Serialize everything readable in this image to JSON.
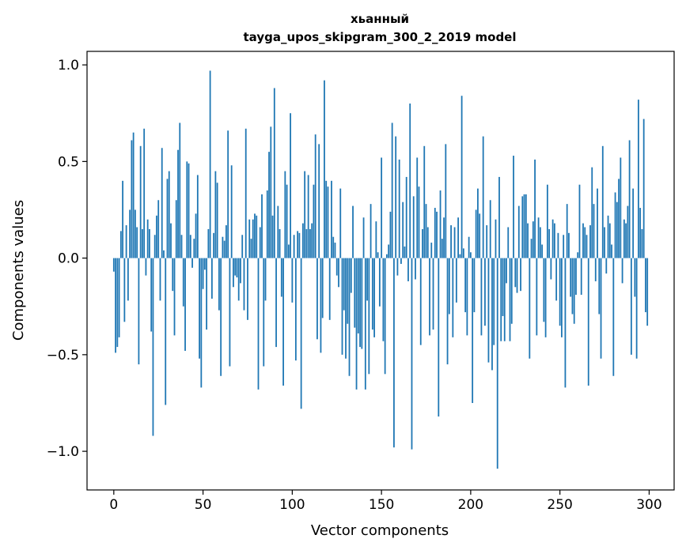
{
  "chart_data": {
    "type": "bar",
    "title_line1": "хьанный",
    "title_line2": "tayga_upos_skipgram_300_2_2019 model",
    "xlabel": "Vector components",
    "ylabel": "Components values",
    "xlim": [
      -15,
      314
    ],
    "ylim": [
      -1.2,
      1.07
    ],
    "xticks": [
      0,
      50,
      100,
      150,
      200,
      250,
      300
    ],
    "xtick_labels": [
      "0",
      "50",
      "100",
      "150",
      "200",
      "250",
      "300"
    ],
    "yticks": [
      -1.0,
      -0.5,
      0.0,
      0.5,
      1.0
    ],
    "ytick_labels": [
      "−1.0",
      "−0.5",
      "0.0",
      "0.5",
      "1.0"
    ],
    "bar_color": "#1f77b4",
    "grid": false,
    "series": [
      {
        "values": [
          -0.07,
          -0.49,
          -0.46,
          -0.41,
          0.14,
          0.4,
          -0.33,
          0.17,
          -0.22,
          0.25,
          0.61,
          0.65,
          0.25,
          0.16,
          -0.55,
          0.58,
          0.15,
          0.67,
          -0.09,
          0.2,
          0.15,
          -0.38,
          -0.92,
          0.12,
          0.22,
          0.3,
          -0.22,
          0.57,
          0.04,
          -0.76,
          0.41,
          0.45,
          0.18,
          -0.17,
          -0.4,
          0.3,
          0.56,
          0.7,
          0.12,
          -0.25,
          -0.48,
          0.5,
          0.49,
          0.12,
          -0.05,
          0.1,
          0.23,
          0.43,
          -0.52,
          -0.67,
          -0.16,
          -0.06,
          -0.37,
          0.15,
          0.97,
          -0.21,
          0.13,
          0.45,
          0.39,
          -0.27,
          -0.61,
          0.11,
          0.09,
          0.17,
          0.66,
          -0.56,
          0.48,
          -0.15,
          -0.09,
          -0.1,
          -0.22,
          -0.13,
          0.12,
          -0.27,
          0.67,
          -0.32,
          0.2,
          0.1,
          0.2,
          0.23,
          0.22,
          -0.68,
          0.16,
          0.33,
          -0.56,
          -0.22,
          0.35,
          0.55,
          0.68,
          0.22,
          0.88,
          -0.46,
          0.27,
          0.15,
          -0.2,
          -0.66,
          0.45,
          0.38,
          0.07,
          0.75,
          -0.23,
          0.12,
          -0.53,
          0.14,
          0.13,
          -0.78,
          0.18,
          0.45,
          0.15,
          0.43,
          0.15,
          0.18,
          0.38,
          0.64,
          -0.42,
          0.59,
          -0.49,
          -0.31,
          0.92,
          0.4,
          0.37,
          -0.32,
          0.4,
          0.11,
          0.08,
          -0.09,
          -0.15,
          0.36,
          -0.5,
          -0.27,
          -0.52,
          -0.34,
          -0.61,
          -0.18,
          0.27,
          -0.36,
          -0.68,
          -0.39,
          -0.46,
          -0.47,
          0.21,
          -0.68,
          -0.22,
          -0.6,
          0.28,
          -0.37,
          -0.41,
          0.19,
          0.03,
          -0.25,
          0.52,
          -0.43,
          -0.6,
          0.02,
          0.07,
          0.24,
          0.7,
          -0.98,
          0.63,
          -0.09,
          0.51,
          -0.03,
          0.29,
          0.06,
          0.42,
          -0.12,
          0.8,
          -0.99,
          0.32,
          -0.11,
          0.52,
          0.37,
          -0.45,
          0.15,
          0.58,
          0.28,
          0.16,
          -0.4,
          0.08,
          -0.37,
          0.26,
          0.24,
          -0.82,
          0.35,
          0.1,
          0.21,
          0.59,
          -0.55,
          -0.29,
          0.17,
          -0.41,
          0.16,
          -0.23,
          0.21,
          0.02,
          0.84,
          0.05,
          -0.28,
          -0.4,
          0.11,
          0.03,
          -0.75,
          -0.28,
          0.25,
          0.36,
          0.23,
          -0.4,
          0.63,
          -0.35,
          0.17,
          -0.54,
          0.3,
          -0.58,
          -0.45,
          0.2,
          -1.09,
          0.42,
          -0.43,
          -0.3,
          -0.43,
          -0.13,
          0.16,
          -0.43,
          -0.34,
          0.53,
          -0.15,
          -0.18,
          0.27,
          -0.17,
          0.32,
          0.33,
          0.33,
          0.18,
          -0.52,
          0.1,
          0.19,
          0.51,
          -0.4,
          0.21,
          0.16,
          0.07,
          -0.33,
          -0.41,
          0.38,
          0.15,
          -0.11,
          0.2,
          0.18,
          -0.22,
          0.13,
          -0.35,
          -0.41,
          0.12,
          -0.67,
          0.28,
          0.13,
          -0.2,
          -0.29,
          -0.34,
          -0.19,
          0.03,
          0.38,
          -0.19,
          0.18,
          0.16,
          0.12,
          -0.66,
          0.17,
          0.47,
          0.28,
          -0.12,
          0.36,
          -0.29,
          -0.52,
          0.58,
          0.16,
          -0.08,
          0.22,
          0.18,
          0.07,
          -0.61,
          0.34,
          0.29,
          0.41,
          0.52,
          -0.13,
          0.2,
          0.18,
          0.27,
          0.61,
          -0.5,
          0.36,
          -0.2,
          -0.52,
          0.82,
          0.26,
          0.15,
          0.72,
          -0.28,
          -0.35
        ]
      }
    ]
  }
}
